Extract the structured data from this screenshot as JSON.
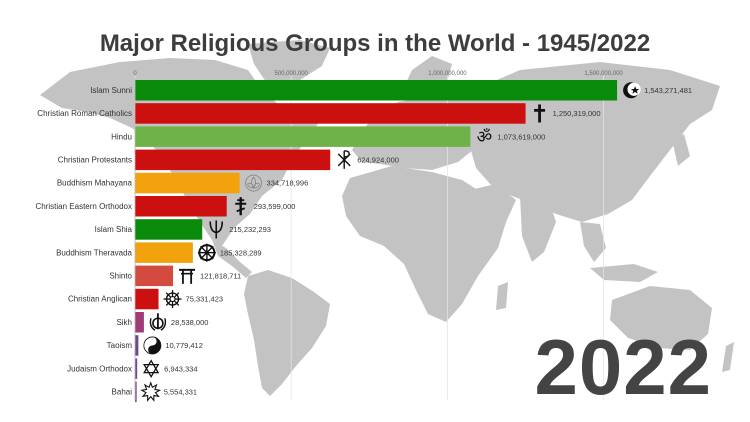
{
  "title": "Major Religious Groups in the World - 1945/2022",
  "year": "2022",
  "chart_data": {
    "type": "bar",
    "orientation": "horizontal",
    "title": "Major Religious Groups in the World - 1945/2022",
    "xlim": [
      0,
      1600000000
    ],
    "x_ticks": [
      0,
      500000000,
      1000000000,
      1500000000
    ],
    "x_tick_labels": [
      "0",
      "500,000,000",
      "1,000,000,000",
      "1,500,000,000"
    ],
    "grid": "vertical",
    "categories": [
      "Islam Sunni",
      "Christian Roman Catholics",
      "Hindu",
      "Christian Protestants",
      "Buddhism Mahayana",
      "Christian Eastern Orthodox",
      "Islam Shia",
      "Buddhism Theravada",
      "Shinto",
      "Christian Anglican",
      "Sikh",
      "Taoism",
      "Judaism Orthodox",
      "Bahai"
    ],
    "values": [
      1543271481,
      1250319000,
      1073619000,
      624924000,
      334718996,
      293599000,
      215232293,
      185328289,
      121818711,
      75331423,
      28538000,
      10779412,
      6943334,
      5554331
    ],
    "value_labels": [
      "1,543,271,481",
      "1,250,319,000",
      "1,073,619,000",
      "624,924,000",
      "334,718,996",
      "293,599,000",
      "215,232,293",
      "185,328,289",
      "121,818,711",
      "75,331,423",
      "28,538,000",
      "10,779,412",
      "6,943,334",
      "5,554,331"
    ],
    "colors": [
      "#0a8a0a",
      "#cc0f0f",
      "#6fb24a",
      "#cc0f0f",
      "#f2a20c",
      "#cc0f0f",
      "#0a8a0a",
      "#f2a20c",
      "#d24b3e",
      "#cc0f0f",
      "#a03c78",
      "#6b4a8a",
      "#6a4a9a",
      "#7a5aa0"
    ],
    "icons": [
      "crescent-star-icon",
      "latin-cross-icon",
      "om-icon",
      "chi-rho-icon",
      "lotus-icon",
      "orthodox-cross-icon",
      "zulfiqar-icon",
      "dharma-wheel-icon",
      "torii-icon",
      "compass-rose-icon",
      "khanda-icon",
      "yin-yang-icon",
      "star-of-david-icon",
      "nine-pointed-star-icon"
    ]
  }
}
